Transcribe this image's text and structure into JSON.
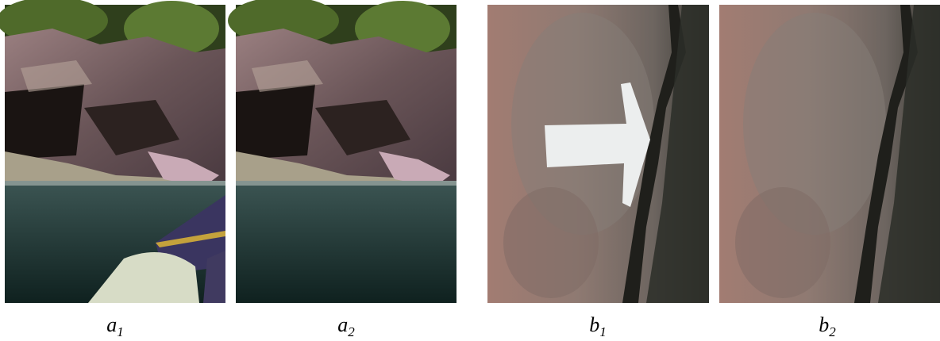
{
  "captions": [
    {
      "letter": "a",
      "sub": "1"
    },
    {
      "letter": "a",
      "sub": "2"
    },
    {
      "letter": "b",
      "sub": "1"
    },
    {
      "letter": "b",
      "sub": "2"
    }
  ]
}
